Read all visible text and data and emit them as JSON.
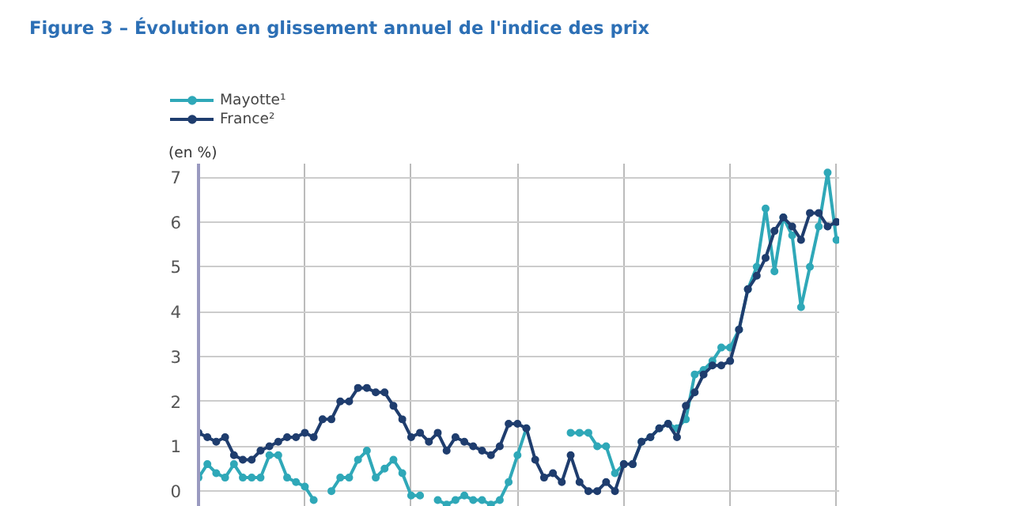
{
  "chart_data": {
    "type": "line",
    "title": "Figure 3 – Évolution en glissement annuel de l'indice des prix",
    "ylabel": "(en %)",
    "categories": [
      null,
      null,
      null,
      null,
      null,
      null,
      null,
      null,
      null,
      null,
      null,
      null,
      null,
      null,
      null,
      null,
      null,
      null,
      null,
      null,
      null,
      null,
      null,
      null,
      null,
      null,
      null,
      null,
      null,
      null,
      null,
      null,
      null,
      null,
      null,
      null,
      null,
      null,
      null,
      null,
      null,
      null,
      null,
      null,
      null,
      null,
      null,
      null,
      null,
      null,
      null,
      null,
      null,
      null,
      null,
      null,
      null,
      null,
      null,
      null,
      null,
      null,
      null,
      null,
      null,
      null,
      null,
      null,
      null,
      null,
      null,
      null,
      null
    ],
    "series": [
      {
        "name": "Mayotte¹",
        "color": "#2fa8b8",
        "values": [
          0.3,
          0.6,
          0.4,
          0.3,
          0.6,
          0.3,
          0.3,
          0.3,
          0.8,
          0.8,
          0.3,
          0.2,
          0.1,
          -0.2,
          null,
          0.0,
          0.3,
          0.3,
          0.7,
          0.9,
          0.3,
          0.5,
          0.7,
          0.4,
          -0.1,
          -0.1,
          null,
          -0.2,
          -0.3,
          -0.2,
          -0.1,
          -0.2,
          -0.2,
          -0.3,
          -0.2,
          0.2,
          0.8,
          1.4,
          null,
          null,
          null,
          null,
          1.3,
          1.3,
          1.3,
          1.0,
          1.0,
          0.4,
          0.6,
          0.6,
          1.1,
          1.2,
          1.4,
          1.5,
          1.4,
          1.6,
          2.6,
          2.7,
          2.9,
          3.2,
          3.2,
          3.6,
          4.5,
          5.0,
          6.3,
          4.9,
          6.1,
          5.7,
          4.1,
          5.0,
          5.9,
          7.1,
          5.6
        ]
      },
      {
        "name": "France²",
        "color": "#1f3d6e",
        "values": [
          1.3,
          1.2,
          1.1,
          1.2,
          0.8,
          0.7,
          0.7,
          0.9,
          1.0,
          1.1,
          1.2,
          1.2,
          1.3,
          1.2,
          1.6,
          1.6,
          2.0,
          2.0,
          2.3,
          2.3,
          2.2,
          2.2,
          1.9,
          1.6,
          1.2,
          1.3,
          1.1,
          1.3,
          0.9,
          1.2,
          1.1,
          1.0,
          0.9,
          0.8,
          1.0,
          1.5,
          1.5,
          1.4,
          0.7,
          0.3,
          0.4,
          0.2,
          0.8,
          0.2,
          0.0,
          0.0,
          0.2,
          0.0,
          0.6,
          0.6,
          1.1,
          1.2,
          1.4,
          1.5,
          1.2,
          1.9,
          2.2,
          2.6,
          2.8,
          2.8,
          2.9,
          3.6,
          4.5,
          4.8,
          5.2,
          5.8,
          6.1,
          5.9,
          5.6,
          6.2,
          6.2,
          5.9,
          6.0
        ]
      }
    ],
    "ylim": [
      -0.35,
      7.3
    ],
    "yticks": [
      0,
      1,
      2,
      3,
      4,
      5,
      6,
      7
    ],
    "grid": true,
    "legend": "top left",
    "marker": "circle",
    "line_style": "solid",
    "tick_labels": "y"
  }
}
